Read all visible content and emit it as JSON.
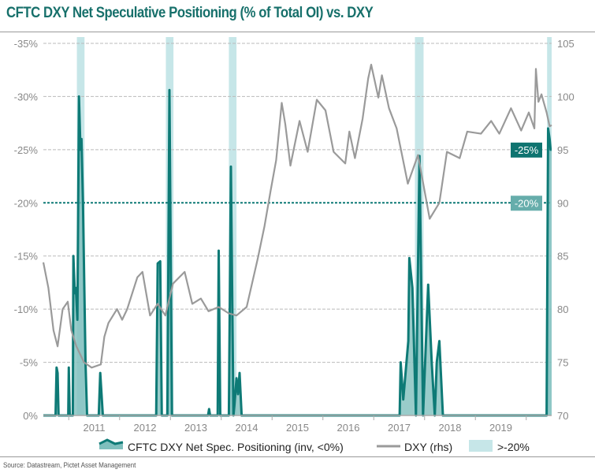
{
  "title": "CFTC DXY Net Speculative Positioning (% of Total OI) vs. DXY",
  "source": "Source: Datastream, Pictet Asset Management",
  "chart_data": {
    "type": "line",
    "title": "CFTC DXY Net Speculative Positioning (% of Total OI) vs. DXY",
    "xlim": [
      2010.5,
      2020.5
    ],
    "x_ticks": [
      "2011",
      "2012",
      "2013",
      "2014",
      "2015",
      "2016",
      "2017",
      "2018",
      "2019"
    ],
    "y_left": {
      "lim": [
        0,
        35
      ],
      "ticks": [
        "0%",
        "-5%",
        "-10%",
        "-15%",
        "-20%",
        "-25%",
        "-30%",
        "-35%"
      ],
      "inverted_sign": true
    },
    "y_right": {
      "lim": [
        70,
        105
      ],
      "ticks": [
        "70",
        "75",
        "80",
        "85",
        "90",
        "95",
        "100",
        "105"
      ]
    },
    "grid": true,
    "legend_position": "bottom",
    "threshold": {
      "value": 20,
      "label": "-20%"
    },
    "last_value_label": {
      "value": 25,
      "label": "-25%"
    },
    "colors": {
      "cftc": "#0e7a76",
      "cftc_fill": "#7fbfbd",
      "dxy": "#9a9a9a",
      "band": "#c6e6e8",
      "label_dark": "#0f7470",
      "label_light": "#66adab"
    },
    "bands": [
      [
        2011.16,
        2011.31
      ],
      [
        2012.91,
        2013.06
      ],
      [
        2014.15,
        2014.3
      ],
      [
        2017.81,
        2017.98
      ],
      [
        2020.41,
        2020.5
      ]
    ],
    "series": [
      {
        "name": "CFTC DXY Net Spec. Positioning (inv, <0%)",
        "axis": "left",
        "style": "area",
        "points": [
          [
            2010.5,
            0
          ],
          [
            2010.74,
            0
          ],
          [
            2010.76,
            4.5
          ],
          [
            2010.78,
            4
          ],
          [
            2010.8,
            0
          ],
          [
            2010.99,
            0
          ],
          [
            2011.0,
            4.5
          ],
          [
            2011.02,
            0
          ],
          [
            2011.08,
            0
          ],
          [
            2011.09,
            15
          ],
          [
            2011.12,
            11.5
          ],
          [
            2011.14,
            12
          ],
          [
            2011.17,
            9
          ],
          [
            2011.2,
            30
          ],
          [
            2011.23,
            25
          ],
          [
            2011.25,
            26
          ],
          [
            2011.28,
            20
          ],
          [
            2011.33,
            5
          ],
          [
            2011.36,
            0
          ],
          [
            2011.59,
            0
          ],
          [
            2011.62,
            4
          ],
          [
            2011.67,
            0
          ],
          [
            2012.72,
            0
          ],
          [
            2012.75,
            14.3
          ],
          [
            2012.8,
            14.5
          ],
          [
            2012.83,
            0
          ],
          [
            2012.94,
            0
          ],
          [
            2012.98,
            30.6
          ],
          [
            2013.03,
            0
          ],
          [
            2013.74,
            0
          ],
          [
            2013.76,
            0.6
          ],
          [
            2013.78,
            0
          ],
          [
            2013.93,
            0
          ],
          [
            2013.95,
            15.5
          ],
          [
            2013.98,
            0
          ],
          [
            2014.15,
            0
          ],
          [
            2014.19,
            23.4
          ],
          [
            2014.24,
            0
          ],
          [
            2014.26,
            1
          ],
          [
            2014.3,
            3.5
          ],
          [
            2014.33,
            2
          ],
          [
            2014.36,
            4
          ],
          [
            2014.4,
            0
          ],
          [
            2017.51,
            0
          ],
          [
            2017.53,
            5
          ],
          [
            2017.58,
            1.5
          ],
          [
            2017.68,
            7
          ],
          [
            2017.7,
            14.8
          ],
          [
            2017.76,
            12
          ],
          [
            2017.83,
            0
          ],
          [
            2017.9,
            24.4
          ],
          [
            2017.97,
            0
          ],
          [
            2018.07,
            12.3
          ],
          [
            2018.14,
            5
          ],
          [
            2018.2,
            0
          ],
          [
            2018.24,
            5
          ],
          [
            2018.29,
            7
          ],
          [
            2018.36,
            0
          ],
          [
            2020.4,
            0
          ],
          [
            2020.43,
            27
          ],
          [
            2020.46,
            26
          ],
          [
            2020.48,
            25
          ],
          [
            2020.5,
            25
          ]
        ]
      },
      {
        "name": "DXY (rhs)",
        "axis": "right",
        "style": "line",
        "points": [
          [
            2010.5,
            84.4
          ],
          [
            2010.6,
            82
          ],
          [
            2010.7,
            78
          ],
          [
            2010.78,
            76.5
          ],
          [
            2010.88,
            80
          ],
          [
            2010.98,
            80.7
          ],
          [
            2011.05,
            78
          ],
          [
            2011.15,
            76.5
          ],
          [
            2011.3,
            75
          ],
          [
            2011.45,
            74.5
          ],
          [
            2011.63,
            74.8
          ],
          [
            2011.7,
            77.4
          ],
          [
            2011.78,
            78.7
          ],
          [
            2011.95,
            80
          ],
          [
            2012.05,
            79
          ],
          [
            2012.15,
            80
          ],
          [
            2012.35,
            83
          ],
          [
            2012.45,
            83.5
          ],
          [
            2012.6,
            79.4
          ],
          [
            2012.75,
            80.5
          ],
          [
            2012.9,
            79.4
          ],
          [
            2013.05,
            82.4
          ],
          [
            2013.28,
            83.5
          ],
          [
            2013.43,
            80.5
          ],
          [
            2013.6,
            81
          ],
          [
            2013.75,
            79.8
          ],
          [
            2013.95,
            80.2
          ],
          [
            2014.15,
            79.6
          ],
          [
            2014.3,
            79.4
          ],
          [
            2014.5,
            80.2
          ],
          [
            2014.72,
            84.8
          ],
          [
            2014.85,
            87.8
          ],
          [
            2014.97,
            91.1
          ],
          [
            2015.08,
            94.0
          ],
          [
            2015.19,
            99.4
          ],
          [
            2015.26,
            97.4
          ],
          [
            2015.36,
            93.5
          ],
          [
            2015.54,
            97.7
          ],
          [
            2015.7,
            94.8
          ],
          [
            2015.88,
            99.7
          ],
          [
            2016.05,
            98.7
          ],
          [
            2016.21,
            94.8
          ],
          [
            2016.44,
            93.7
          ],
          [
            2016.52,
            96.7
          ],
          [
            2016.63,
            94.2
          ],
          [
            2016.78,
            97.9
          ],
          [
            2016.89,
            101.7
          ],
          [
            2016.95,
            103.0
          ],
          [
            2017.09,
            99.9
          ],
          [
            2017.16,
            102.0
          ],
          [
            2017.3,
            98.9
          ],
          [
            2017.45,
            97.0
          ],
          [
            2017.67,
            91.8
          ],
          [
            2017.87,
            94.5
          ],
          [
            2018.1,
            88.5
          ],
          [
            2018.29,
            90.0
          ],
          [
            2018.44,
            94.8
          ],
          [
            2018.69,
            94.2
          ],
          [
            2018.84,
            96.7
          ],
          [
            2019.11,
            96.5
          ],
          [
            2019.31,
            97.7
          ],
          [
            2019.47,
            96.5
          ],
          [
            2019.7,
            98.9
          ],
          [
            2019.9,
            96.8
          ],
          [
            2020.05,
            98.5
          ],
          [
            2020.16,
            97.0
          ],
          [
            2020.19,
            102.6
          ],
          [
            2020.24,
            99.5
          ],
          [
            2020.3,
            100.2
          ],
          [
            2020.4,
            98.5
          ],
          [
            2020.46,
            97.2
          ],
          [
            2020.5,
            97.3
          ]
        ]
      }
    ]
  },
  "legend": {
    "cftc_label": "CFTC DXY Net Spec. Positioning (inv, <0%)",
    "dxy_label": "DXY (rhs)",
    "band_label": ">-20%"
  }
}
